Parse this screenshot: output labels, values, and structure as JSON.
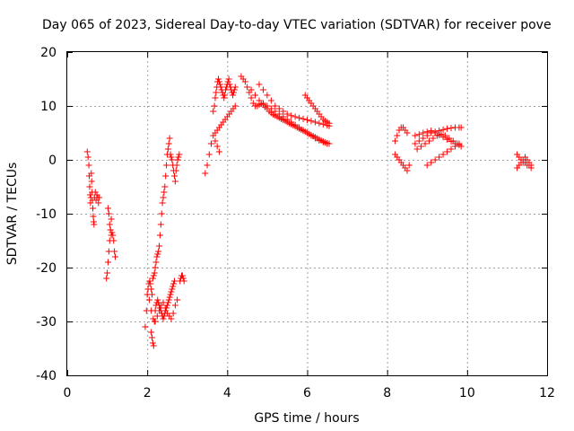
{
  "chart_data": {
    "type": "scatter",
    "title": "Day 065 of 2023, Sidereal Day-to-day VTEC variation (SDTVAR) for receiver pove",
    "xlabel": "GPS time / hours",
    "ylabel": "SDTVAR / TECUs",
    "xlim": [
      0,
      12
    ],
    "ylim": [
      -40,
      20
    ],
    "xticks": [
      0,
      2,
      4,
      6,
      8,
      10,
      12
    ],
    "yticks": [
      -40,
      -30,
      -20,
      -10,
      0,
      10,
      20
    ],
    "grid": true,
    "marker": "plus",
    "color": "#ff0000",
    "series": [
      {
        "name": "SDTVAR",
        "x": [
          0.5,
          0.52,
          0.54,
          0.55,
          0.56,
          0.57,
          0.58,
          0.59,
          0.6,
          0.61,
          0.62,
          0.63,
          0.64,
          0.65,
          0.66,
          0.67,
          0.68,
          0.7,
          0.72,
          0.74,
          0.76,
          0.78,
          0.8,
          0.98,
          1.0,
          1.02,
          1.04,
          1.06,
          1.08,
          1.1,
          1.12,
          1.14,
          1.16,
          1.18,
          1.2,
          1.02,
          1.04,
          1.06,
          1.08,
          1.1,
          1.95,
          1.98,
          2.0,
          2.02,
          2.04,
          2.06,
          2.08,
          2.1,
          2.12,
          2.14,
          2.16,
          2.18,
          2.2,
          2.22,
          2.24,
          2.26,
          2.28,
          2.3,
          2.32,
          2.34,
          2.36,
          2.38,
          2.4,
          2.42,
          2.44,
          2.46,
          2.48,
          2.5,
          2.52,
          2.54,
          2.56,
          2.58,
          2.6,
          2.62,
          2.64,
          2.66,
          2.68,
          2.7,
          2.72,
          2.74,
          2.76,
          2.78,
          2.8,
          2.82,
          2.84,
          2.86,
          2.88,
          2.9,
          2.92,
          2.05,
          2.1,
          2.15,
          2.2,
          2.25,
          2.3,
          2.35,
          2.4,
          2.45,
          2.5,
          2.55,
          2.6,
          2.65,
          2.7,
          2.75,
          2.1,
          2.12,
          2.14,
          2.16,
          2.18,
          2.2,
          2.22,
          2.24,
          2.26,
          2.28,
          2.3,
          2.32,
          2.34,
          2.36,
          2.38,
          2.4,
          2.42,
          2.44,
          2.46,
          2.48,
          2.5,
          2.52,
          2.54,
          2.56,
          2.58,
          2.6,
          2.62,
          2.64,
          2.66,
          2.68,
          3.45,
          3.5,
          3.55,
          3.6,
          3.65,
          3.7,
          3.75,
          3.8,
          3.65,
          3.68,
          3.7,
          3.72,
          3.74,
          3.76,
          3.78,
          3.8,
          3.82,
          3.84,
          3.86,
          3.88,
          3.9,
          3.92,
          3.94,
          3.96,
          3.98,
          4.0,
          4.02,
          4.04,
          4.06,
          4.08,
          4.1,
          4.12,
          4.14,
          4.16,
          4.18,
          4.2,
          3.7,
          3.75,
          3.8,
          3.85,
          3.9,
          3.95,
          4.0,
          4.05,
          4.1,
          4.15,
          4.2,
          4.35,
          4.4,
          4.45,
          4.5,
          4.55,
          4.6,
          4.65,
          4.7,
          4.75,
          4.8,
          4.85,
          4.9,
          4.95,
          5.0,
          5.05,
          5.1,
          5.15,
          5.2,
          5.25,
          5.3,
          5.35,
          5.4,
          5.45,
          5.5,
          5.55,
          5.6,
          5.65,
          5.7,
          5.75,
          5.8,
          5.85,
          5.9,
          5.95,
          6.0,
          6.05,
          6.1,
          6.15,
          6.2,
          6.25,
          6.3,
          6.35,
          6.4,
          6.45,
          6.5,
          6.55,
          4.6,
          4.7,
          4.8,
          4.9,
          5.0,
          5.1,
          5.2,
          5.3,
          5.4,
          5.5,
          5.6,
          5.7,
          5.8,
          5.9,
          6.0,
          6.1,
          6.2,
          6.3,
          6.4,
          6.5,
          4.8,
          4.9,
          5.0,
          5.1,
          5.2,
          5.3,
          5.4,
          5.5,
          5.6,
          5.7,
          5.8,
          5.9,
          6.0,
          6.1,
          6.2,
          6.3,
          6.4,
          6.5,
          6.55,
          5.95,
          6.0,
          6.05,
          6.1,
          6.15,
          6.2,
          6.25,
          6.3,
          6.35,
          6.4,
          6.45,
          6.5,
          6.55,
          8.2,
          8.25,
          8.3,
          8.35,
          8.4,
          8.45,
          8.5,
          8.2,
          8.25,
          8.3,
          8.35,
          8.4,
          8.45,
          8.5,
          8.55,
          8.7,
          8.8,
          8.9,
          9.0,
          9.1,
          9.2,
          9.3,
          9.4,
          9.5,
          9.6,
          9.7,
          9.8,
          9.85,
          8.7,
          8.8,
          8.9,
          9.0,
          9.1,
          9.2,
          9.3,
          9.4,
          9.5,
          9.6,
          9.7,
          9.8,
          8.75,
          8.85,
          8.95,
          9.05,
          9.15,
          9.25,
          9.35,
          9.45,
          9.55,
          9.65,
          9.75,
          9.85,
          9.0,
          9.1,
          9.2,
          9.3,
          9.4,
          9.5,
          9.6,
          9.7,
          9.8,
          11.25,
          11.3,
          11.35,
          11.4,
          11.45,
          11.5,
          11.55,
          11.6,
          11.25,
          11.3,
          11.35,
          11.4,
          11.45,
          11.5,
          11.55,
          11.6
        ],
        "y": [
          1.5,
          0.5,
          -1.0,
          -3.0,
          -5.0,
          -6.5,
          -8.0,
          -7.0,
          -2.5,
          -4.0,
          -6.0,
          -7.5,
          -9.0,
          -10.5,
          -11.5,
          -12.0,
          -7.0,
          -6.0,
          -7.5,
          -6.5,
          -7.0,
          -8.0,
          -7.0,
          -22.0,
          -21.0,
          -19.0,
          -17.0,
          -15.0,
          -13.0,
          -11.0,
          -13.5,
          -14.0,
          -15.0,
          -17.0,
          -18.0,
          -9.0,
          -10.0,
          -12.0,
          -13.0,
          -14.0,
          -31.0,
          -28.0,
          -25.0,
          -24.0,
          -23.0,
          -22.5,
          -23.0,
          -24.0,
          -25.0,
          -22.0,
          -21.5,
          -21.0,
          -20.0,
          -19.0,
          -18.0,
          -17.5,
          -17.0,
          -16.0,
          -14.0,
          -12.0,
          -10.0,
          -8.0,
          -7.0,
          -6.0,
          -5.0,
          -3.0,
          -1.0,
          1.0,
          2.0,
          3.0,
          4.0,
          1.0,
          0.5,
          0.0,
          -1.0,
          -2.0,
          -3.0,
          -4.0,
          -2.0,
          -1.0,
          0.0,
          0.5,
          1.0,
          -22.5,
          -22.0,
          -21.5,
          -21.5,
          -22.0,
          -22.5,
          -26.0,
          -28.0,
          -29.5,
          -30.0,
          -29.0,
          -28.0,
          -27.0,
          -26.5,
          -27.5,
          -28.5,
          -29.0,
          -29.5,
          -28.5,
          -27.0,
          -26.0,
          -32.0,
          -33.0,
          -34.0,
          -34.5,
          -30.0,
          -28.0,
          -27.0,
          -26.5,
          -26.0,
          -26.5,
          -27.0,
          -27.5,
          -28.0,
          -28.5,
          -29.0,
          -29.5,
          -29.0,
          -28.5,
          -28.0,
          -27.5,
          -27.0,
          -26.5,
          -26.0,
          -25.5,
          -25.0,
          -24.5,
          -24.0,
          -23.5,
          -23.0,
          -22.5,
          -2.5,
          -1.0,
          1.0,
          3.0,
          4.5,
          3.5,
          2.5,
          1.5,
          9.0,
          10.0,
          11.5,
          12.5,
          13.5,
          14.5,
          15.0,
          14.5,
          14.0,
          13.5,
          13.0,
          12.5,
          12.0,
          11.5,
          12.0,
          13.0,
          13.5,
          14.0,
          14.5,
          15.0,
          14.0,
          13.5,
          13.0,
          12.5,
          12.0,
          12.5,
          13.0,
          13.5,
          5.0,
          5.5,
          6.0,
          6.5,
          7.0,
          7.5,
          8.0,
          8.5,
          9.0,
          9.5,
          10.0,
          15.5,
          15.0,
          14.5,
          13.5,
          12.5,
          11.5,
          10.5,
          10.0,
          10.0,
          10.2,
          10.4,
          10.2,
          9.8,
          9.5,
          9.0,
          8.7,
          8.4,
          8.2,
          8.0,
          7.8,
          7.6,
          7.4,
          7.2,
          7.0,
          6.8,
          6.6,
          6.4,
          6.2,
          6.0,
          5.8,
          5.6,
          5.4,
          5.2,
          5.0,
          4.8,
          4.6,
          4.4,
          4.2,
          4.0,
          3.8,
          3.6,
          3.4,
          3.2,
          3.1,
          3.0,
          13.0,
          12.0,
          11.0,
          10.5,
          10.0,
          9.5,
          9.0,
          8.5,
          8.0,
          7.5,
          7.0,
          6.5,
          6.0,
          5.5,
          5.0,
          4.5,
          4.0,
          3.6,
          3.3,
          3.0,
          14.0,
          13.0,
          12.0,
          11.0,
          10.0,
          9.5,
          9.0,
          8.5,
          8.2,
          8.0,
          7.8,
          7.6,
          7.4,
          7.2,
          7.0,
          6.8,
          6.6,
          6.4,
          6.3,
          12.0,
          11.5,
          11.0,
          10.5,
          10.0,
          9.5,
          9.0,
          8.5,
          8.0,
          7.5,
          7.2,
          7.0,
          6.8,
          3.5,
          4.5,
          5.5,
          6.0,
          6.0,
          5.5,
          5.0,
          1.0,
          0.5,
          0.0,
          -0.5,
          -1.0,
          -1.5,
          -2.0,
          -1.0,
          3.0,
          3.5,
          4.0,
          4.5,
          5.0,
          5.2,
          5.4,
          5.6,
          5.8,
          5.9,
          6.0,
          6.0,
          6.0,
          4.5,
          4.7,
          5.0,
          5.2,
          5.4,
          5.0,
          4.6,
          4.2,
          3.8,
          3.4,
          3.0,
          2.8,
          2.0,
          2.5,
          3.0,
          3.5,
          4.0,
          4.5,
          4.8,
          4.5,
          4.0,
          3.5,
          3.0,
          2.5,
          -1.0,
          -0.5,
          0.0,
          0.5,
          1.0,
          1.5,
          2.0,
          2.5,
          3.0,
          1.0,
          0.5,
          0.0,
          -0.5,
          -0.5,
          -1.0,
          -1.0,
          -1.5,
          -1.5,
          -1.0,
          -0.5,
          0.0,
          0.5,
          0.0,
          -0.5,
          -1.0
        ]
      }
    ]
  }
}
